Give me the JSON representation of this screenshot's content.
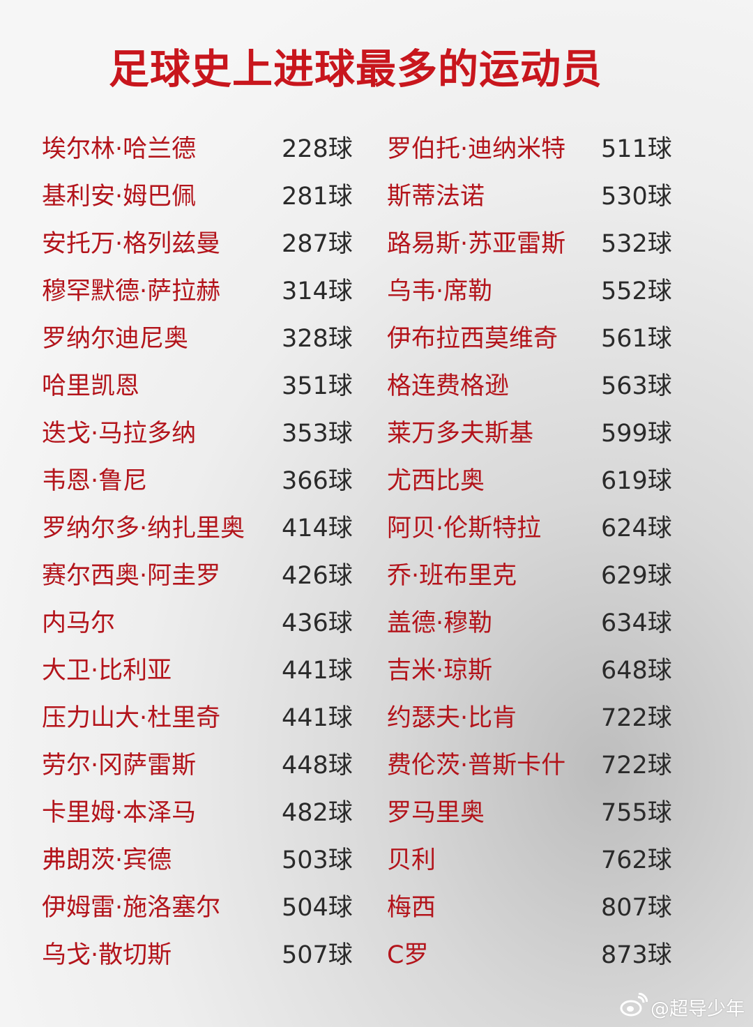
{
  "title": "足球史上进球最多的运动员",
  "colors": {
    "title": "#c8161d",
    "name": "#b3141b",
    "number": "#2a2a2a"
  },
  "unit": "球",
  "left": [
    {
      "name": "埃尔林·哈兰德",
      "goals": "228球"
    },
    {
      "name": "基利安·姆巴佩",
      "goals": "281球"
    },
    {
      "name": "安托万·格列兹曼",
      "goals": "287球"
    },
    {
      "name": "穆罕默德·萨拉赫",
      "goals": "314球"
    },
    {
      "name": "罗纳尔迪尼奥",
      "goals": "328球"
    },
    {
      "name": "哈里凯恩",
      "goals": "351球"
    },
    {
      "name": "迭戈·马拉多纳",
      "goals": "353球"
    },
    {
      "name": "韦恩·鲁尼",
      "goals": "366球"
    },
    {
      "name": "罗纳尔多·纳扎里奥",
      "goals": "414球"
    },
    {
      "name": "赛尔西奥·阿圭罗",
      "goals": "426球"
    },
    {
      "name": "内马尔",
      "goals": "436球"
    },
    {
      "name": "大卫·比利亚",
      "goals": "441球"
    },
    {
      "name": "压力山大·杜里奇",
      "goals": "441球"
    },
    {
      "name": "劳尔·冈萨雷斯",
      "goals": "448球"
    },
    {
      "name": "卡里姆·本泽马",
      "goals": "482球"
    },
    {
      "name": "弗朗茨·宾德",
      "goals": "503球"
    },
    {
      "name": "伊姆雷·施洛塞尔",
      "goals": "504球"
    },
    {
      "name": "乌戈·散切斯",
      "goals": "507球"
    }
  ],
  "right": [
    {
      "name": "罗伯托·迪纳米特",
      "goals": "511球"
    },
    {
      "name": "斯蒂法诺",
      "goals": "530球"
    },
    {
      "name": "路易斯·苏亚雷斯",
      "goals": "532球"
    },
    {
      "name": "乌韦·席勒",
      "goals": "552球"
    },
    {
      "name": "伊布拉西莫维奇",
      "goals": "561球"
    },
    {
      "name": "格连费格逊",
      "goals": "563球"
    },
    {
      "name": "莱万多夫斯基",
      "goals": "599球"
    },
    {
      "name": "尤西比奥",
      "goals": "619球"
    },
    {
      "name": "阿贝·伦斯特拉",
      "goals": "624球"
    },
    {
      "name": "乔·班布里克",
      "goals": "629球"
    },
    {
      "name": "盖德·穆勒",
      "goals": "634球"
    },
    {
      "name": "吉米·琼斯",
      "goals": "648球"
    },
    {
      "name": "约瑟夫·比肯",
      "goals": "722球"
    },
    {
      "name": "费伦茨·普斯卡什",
      "goals": "722球"
    },
    {
      "name": "罗马里奥",
      "goals": "755球"
    },
    {
      "name": "贝利",
      "goals": "762球"
    },
    {
      "name": "梅西",
      "goals": "807球"
    },
    {
      "name": "C罗",
      "goals": "873球"
    }
  ],
  "watermark": {
    "icon": "weibo-icon",
    "text": "@超导少年"
  }
}
